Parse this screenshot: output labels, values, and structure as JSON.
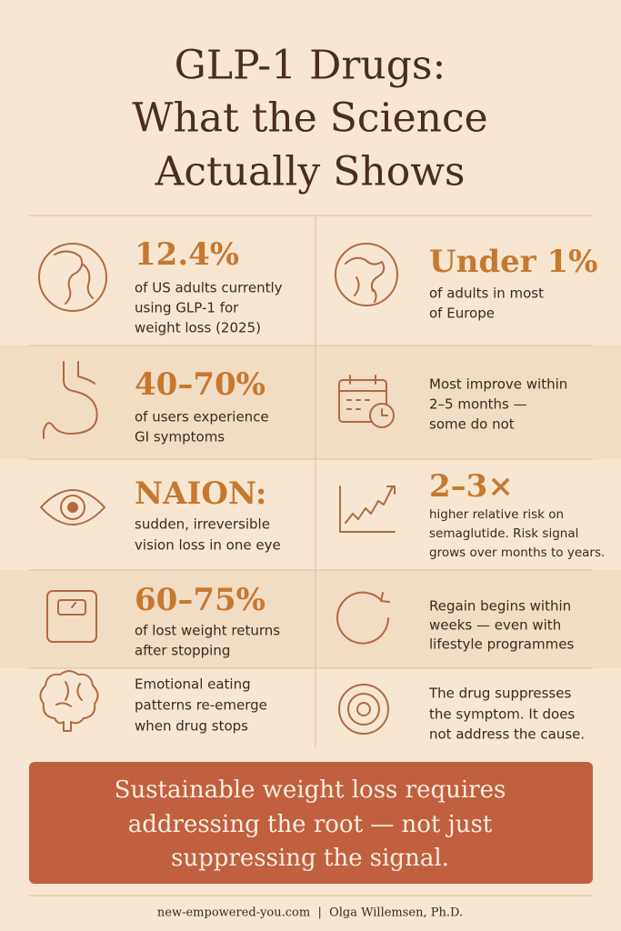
{
  "title": [
    "GLP-1 Drugs:",
    "What the Science",
    "Actually Shows"
  ],
  "cells": [
    {
      "stat": "12.4%",
      "text": [
        "of US adults currently",
        "using GLP-1 for",
        "weight loss (2025)"
      ]
    },
    {
      "stat": "Under 1%",
      "text": [
        "of adults in most",
        "of Europe"
      ]
    },
    {
      "stat": "40–70%",
      "text": [
        "of users experience",
        "GI symptoms"
      ]
    },
    {
      "text": [
        "Most improve within",
        "2–5 months —",
        "some do not"
      ]
    },
    {
      "stat": "NAION:",
      "text": [
        "sudden, irreversible",
        "vision loss in one eye"
      ]
    },
    {
      "stat": "2–3×",
      "text": [
        "higher relative risk on",
        "semaglutide. Risk signal",
        "grows over months to years."
      ]
    },
    {
      "stat": "60–75%",
      "text": [
        "of lost weight returns",
        "after stopping"
      ]
    },
    {
      "text": [
        "Regain begins within",
        "weeks — even with",
        "lifestyle programmes"
      ]
    },
    {
      "text": [
        "Emotional eating",
        "patterns re-emerge",
        "when drug stops"
      ]
    },
    {
      "text": [
        "The drug suppresses",
        "the symptom. It does",
        "not address the cause."
      ]
    }
  ],
  "banner": [
    "Sustainable weight loss requires",
    "addressing the root — not just",
    "suppressing the signal."
  ],
  "footer": "new-empowered-you.com  |  Olga Willemsen, Ph.D."
}
